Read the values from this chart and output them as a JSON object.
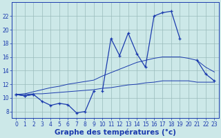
{
  "title": "Graphe des températures (°c)",
  "background_color": "#cce8e8",
  "line_color": "#1a3aad",
  "grid_color": "#99bbbb",
  "hours": [
    0,
    1,
    2,
    3,
    4,
    5,
    6,
    7,
    8,
    9,
    10,
    11,
    12,
    13,
    14,
    15,
    16,
    17,
    18,
    19,
    20,
    21,
    22,
    23
  ],
  "curve_top": [
    10.5,
    10.3,
    10.5,
    null,
    null,
    null,
    null,
    null,
    null,
    null,
    11.0,
    18.7,
    16.2,
    19.5,
    16.5,
    14.5,
    22.0,
    22.5,
    22.7,
    18.7,
    null,
    15.5,
    13.5,
    12.5
  ],
  "curve_bot": [
    10.5,
    10.3,
    10.5,
    9.5,
    8.9,
    9.2,
    9.0,
    7.8,
    8.0,
    11.0,
    null,
    null,
    null,
    null,
    null,
    null,
    null,
    null,
    null,
    null,
    null,
    null,
    null,
    null
  ],
  "trend_low": [
    10.5,
    10.5,
    10.6,
    10.6,
    10.7,
    10.8,
    10.9,
    11.0,
    11.1,
    11.2,
    11.4,
    11.5,
    11.7,
    11.9,
    12.0,
    12.2,
    12.3,
    12.5,
    12.5,
    12.5,
    12.5,
    12.3,
    12.3,
    12.3
  ],
  "trend_high": [
    10.5,
    10.6,
    10.9,
    11.2,
    11.5,
    11.7,
    12.0,
    12.2,
    12.4,
    12.6,
    13.2,
    13.7,
    14.2,
    14.7,
    15.2,
    15.5,
    15.8,
    16.0,
    16.0,
    16.0,
    15.8,
    15.5,
    14.5,
    13.8
  ],
  "ylim": [
    7,
    24
  ],
  "yticks": [
    8,
    10,
    12,
    14,
    16,
    18,
    20,
    22
  ],
  "xticks": [
    0,
    1,
    2,
    3,
    4,
    5,
    6,
    7,
    8,
    9,
    10,
    11,
    12,
    13,
    14,
    15,
    16,
    17,
    18,
    19,
    20,
    21,
    22,
    23
  ],
  "tick_fontsize": 5.5,
  "label_fontsize": 7.5
}
